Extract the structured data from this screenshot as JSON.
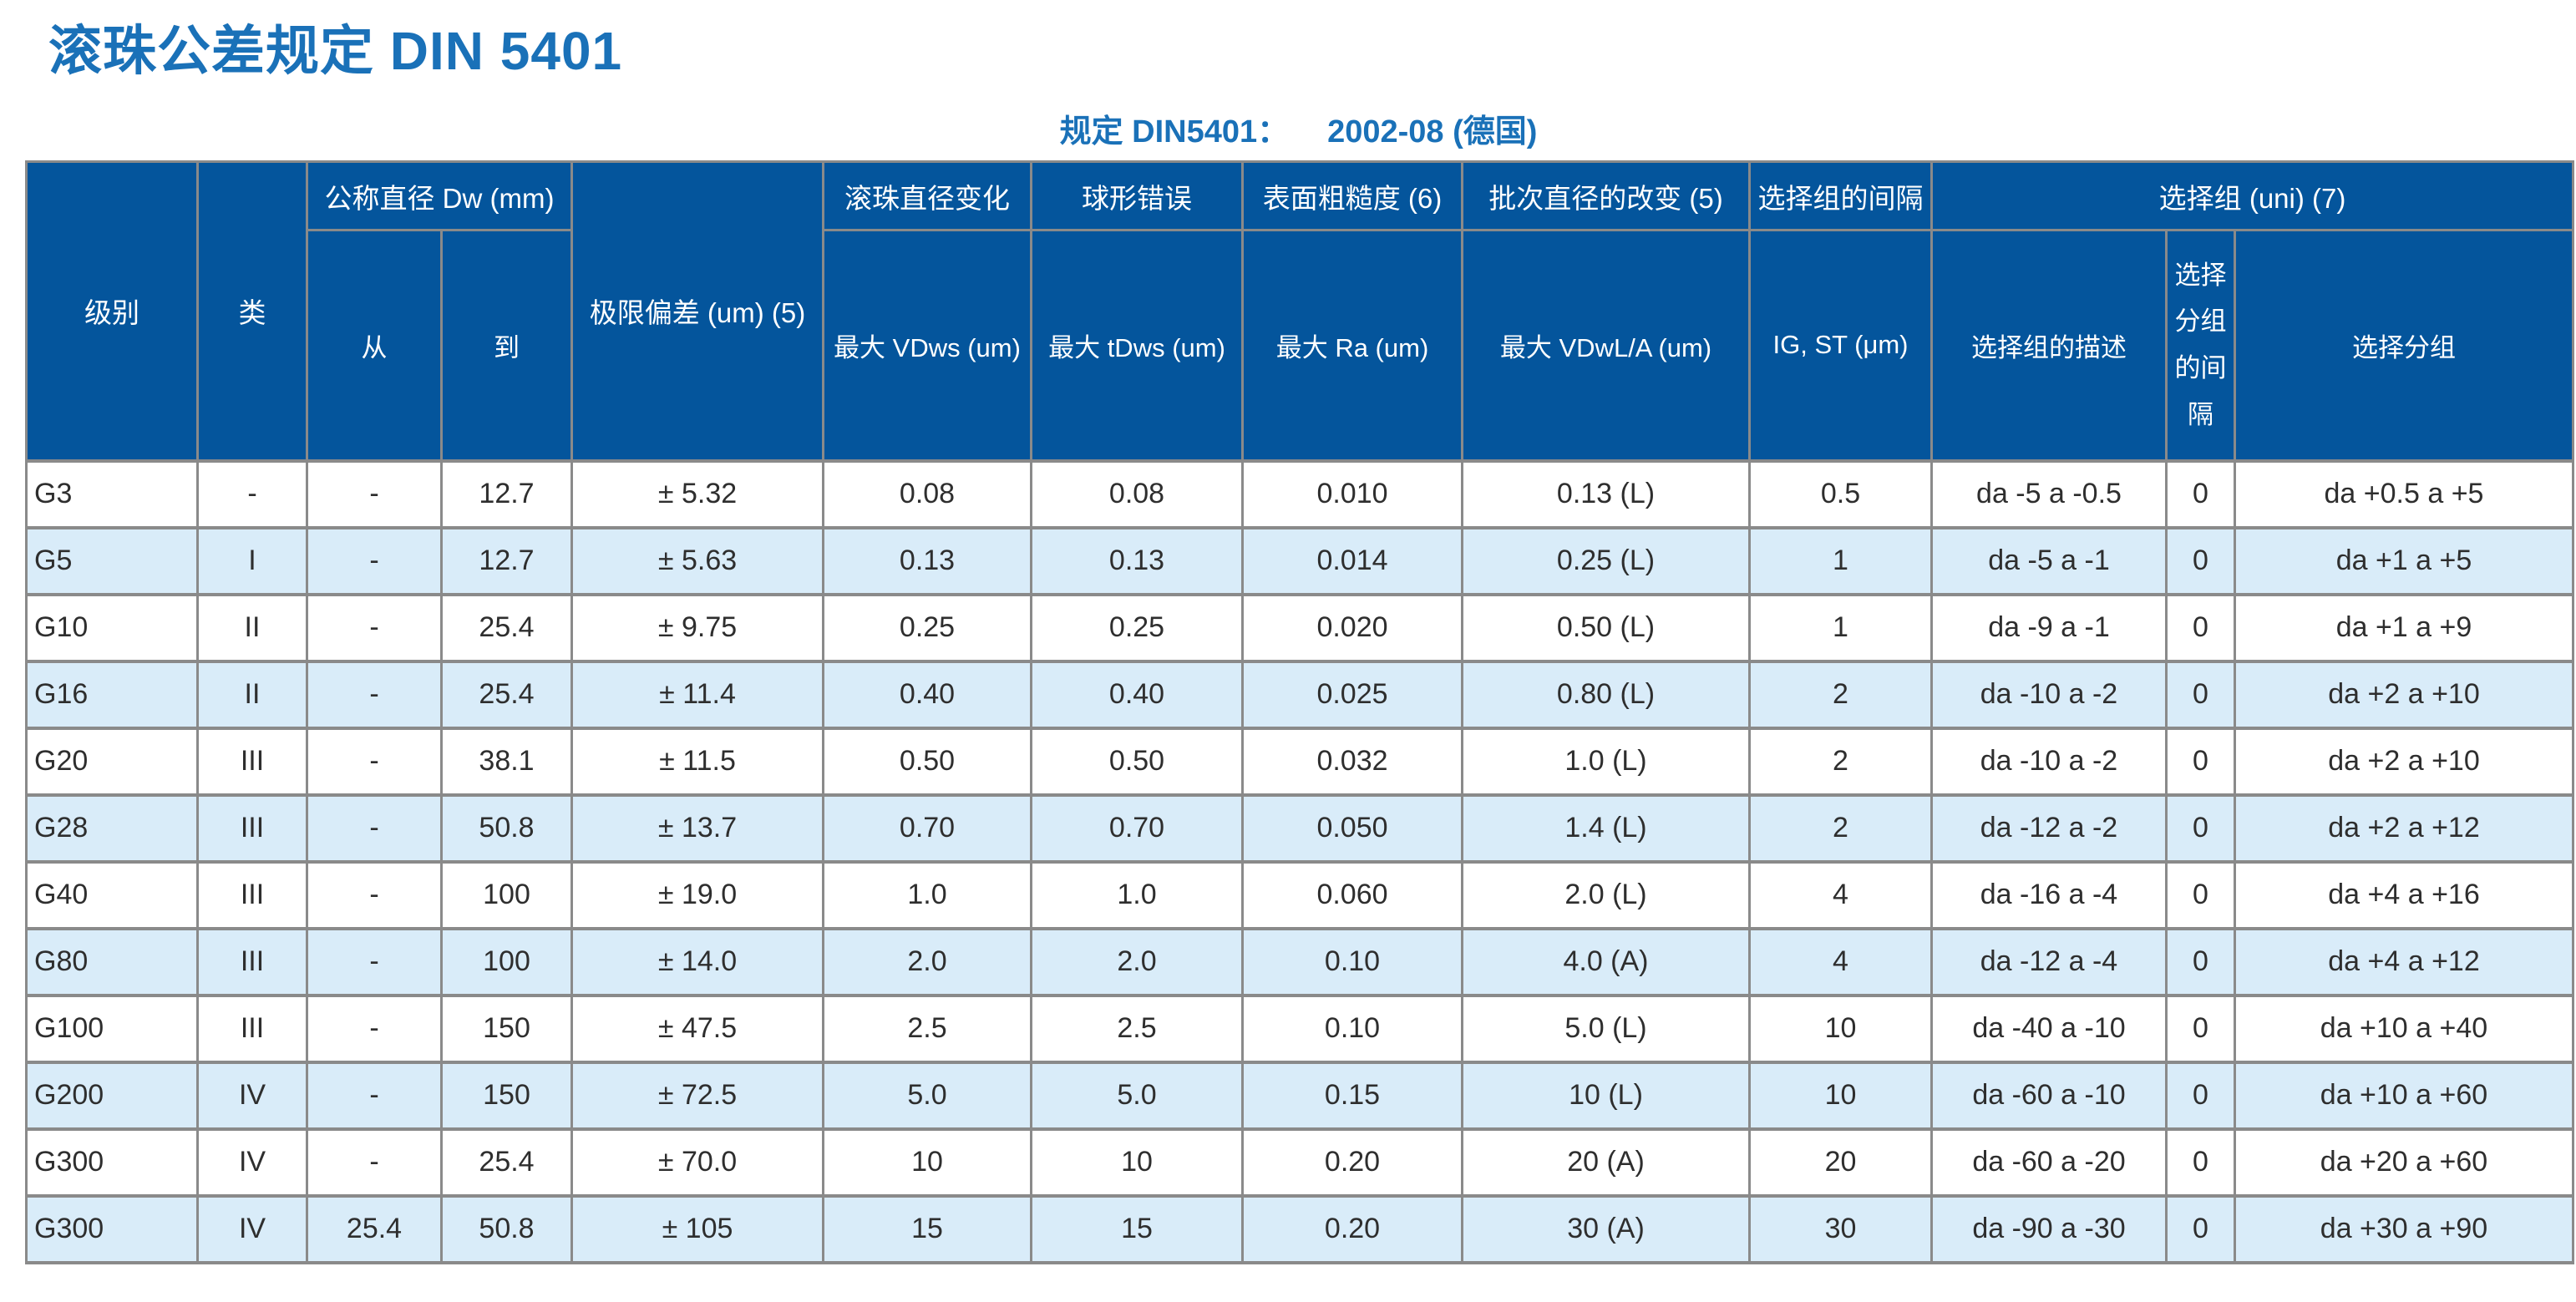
{
  "page": {
    "title": "滚珠公差规定 DIN 5401",
    "subtitle_label": "规定  DIN5401：",
    "subtitle_value": "2002-08 (德国)"
  },
  "colors": {
    "title_blue": "#1a71b8",
    "header_bg": "#04559c",
    "header_text": "#ffffff",
    "row_stripe": "#d9ecf9",
    "grid_gray": "#8a8a8a",
    "body_text": "#2e2e2e"
  },
  "table": {
    "headers": {
      "grade": "级别",
      "class": "类",
      "nominal_diameter_group": "公称直径 Dw (mm)",
      "from": "从",
      "to": "到",
      "limit_deviation": "极限偏差 (um) (5)",
      "ball_diameter_variation": "滚珠直径变化",
      "ball_diameter_variation_sub": "最大  VDws (um)",
      "spherical_error": "球形错误",
      "spherical_error_sub": "最大  tDws (um)",
      "surface_roughness": "表面粗糙度 (6)",
      "surface_roughness_sub": "最大  Ra (um)",
      "lot_diameter_change": "批次直径的改变 (5)",
      "lot_diameter_change_sub": "最大  VDwL/A (um)",
      "selection_group_interval": "选择组的间隔",
      "selection_group_interval_sub": "IG, ST (μm)",
      "selection_group": "选择组  (uni) (7)",
      "selection_group_desc": "选择组的描述",
      "selection_subgroup_interval": "选择分组的间隔",
      "selection_subgroup": "选择分组"
    },
    "rows": [
      [
        "G3",
        "-",
        "-",
        "12.7",
        "± 5.32",
        "0.08",
        "0.08",
        "0.010",
        "0.13 (L)",
        "0.5",
        "da -5 a -0.5",
        "0",
        "da +0.5 a +5"
      ],
      [
        "G5",
        "I",
        "-",
        "12.7",
        "± 5.63",
        "0.13",
        "0.13",
        "0.014",
        "0.25 (L)",
        "1",
        "da -5 a -1",
        "0",
        "da +1 a +5"
      ],
      [
        "G10",
        "II",
        "-",
        "25.4",
        "± 9.75",
        "0.25",
        "0.25",
        "0.020",
        "0.50 (L)",
        "1",
        "da -9 a -1",
        "0",
        "da +1 a +9"
      ],
      [
        "G16",
        "II",
        "-",
        "25.4",
        "± 11.4",
        "0.40",
        "0.40",
        "0.025",
        "0.80 (L)",
        "2",
        "da -10 a -2",
        "0",
        "da +2 a +10"
      ],
      [
        "G20",
        "III",
        "-",
        "38.1",
        "± 11.5",
        "0.50",
        "0.50",
        "0.032",
        "1.0 (L)",
        "2",
        "da -10 a -2",
        "0",
        "da +2 a +10"
      ],
      [
        "G28",
        "III",
        "-",
        "50.8",
        "± 13.7",
        "0.70",
        "0.70",
        "0.050",
        "1.4 (L)",
        "2",
        "da -12 a -2",
        "0",
        "da +2 a +12"
      ],
      [
        "G40",
        "III",
        "-",
        "100",
        "± 19.0",
        "1.0",
        "1.0",
        "0.060",
        "2.0 (L)",
        "4",
        "da -16 a -4",
        "0",
        "da +4 a +16"
      ],
      [
        "G80",
        "III",
        "-",
        "100",
        "± 14.0",
        "2.0",
        "2.0",
        "0.10",
        "4.0 (A)",
        "4",
        "da -12 a -4",
        "0",
        "da +4 a +12"
      ],
      [
        "G100",
        "III",
        "-",
        "150",
        "± 47.5",
        "2.5",
        "2.5",
        "0.10",
        "5.0 (L)",
        "10",
        "da -40 a -10",
        "0",
        "da +10 a +40"
      ],
      [
        "G200",
        "IV",
        "-",
        "150",
        "± 72.5",
        "5.0",
        "5.0",
        "0.15",
        "10 (L)",
        "10",
        "da -60 a -10",
        "0",
        "da +10 a +60"
      ],
      [
        "G300",
        "IV",
        "-",
        "25.4",
        "± 70.0",
        "10",
        "10",
        "0.20",
        "20 (A)",
        "20",
        "da -60 a -20",
        "0",
        "da +20 a +60"
      ],
      [
        "G300",
        "IV",
        "25.4",
        "50.8",
        "± 105",
        "15",
        "15",
        "0.20",
        "30 (A)",
        "30",
        "da -90 a -30",
        "0",
        "da +30 a +90"
      ]
    ]
  }
}
